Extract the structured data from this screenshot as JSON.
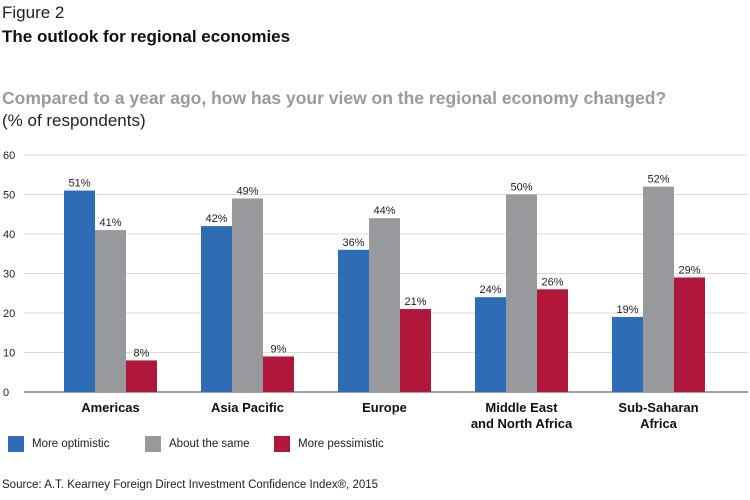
{
  "figure_label": "Figure 2",
  "figure_title": "The outlook for regional economies",
  "question": "Compared to a year ago, how has your view on the regional economy changed?",
  "unit_note": "(% of respondents)",
  "source": "Source: A.T. Kearney Foreign Direct Investment Confidence Index®, 2015",
  "chart_data": {
    "type": "bar",
    "title": "Compared to a year ago, how has your view on the regional economy changed?",
    "ylabel": "(% of respondents)",
    "xlabel": "",
    "categories": [
      [
        "Americas"
      ],
      [
        "Asia Pacific"
      ],
      [
        "Europe"
      ],
      [
        "Middle East",
        "and North Africa"
      ],
      [
        "Sub-Saharan",
        "Africa"
      ]
    ],
    "series": [
      {
        "name": "More optimistic",
        "color": "#2e6db6",
        "values": [
          51,
          42,
          36,
          24,
          19
        ]
      },
      {
        "name": "About the same",
        "color": "#97999c",
        "values": [
          41,
          49,
          44,
          50,
          52
        ]
      },
      {
        "name": "More pessimistic",
        "color": "#b0173b",
        "values": [
          8,
          9,
          21,
          26,
          29
        ]
      }
    ],
    "ylim": [
      0,
      60
    ],
    "yticks": [
      0,
      10,
      20,
      30,
      40,
      50,
      60
    ],
    "value_suffix": "%",
    "grid": true,
    "legend_position": "bottom-left"
  }
}
